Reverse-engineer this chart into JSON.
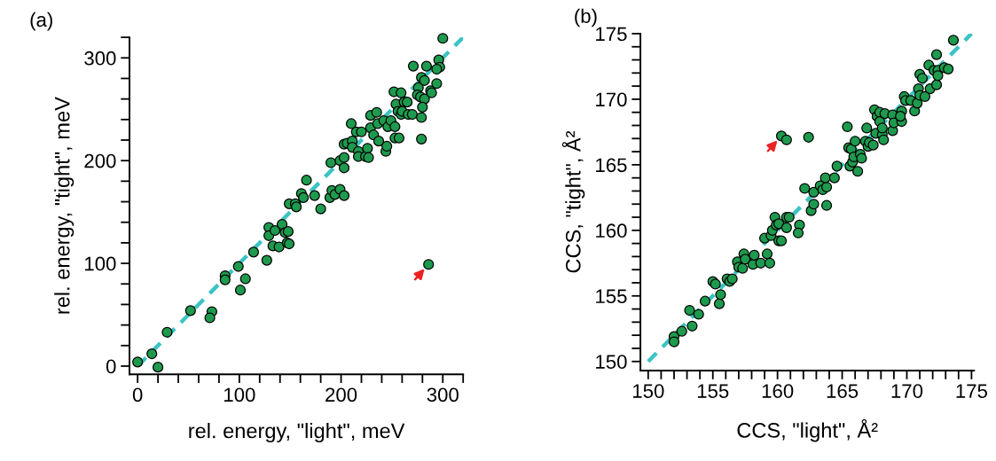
{
  "chart_data": [
    {
      "type": "scatter",
      "title": "(a)",
      "xlabel": "rel. energy, \"light\", meV",
      "ylabel": "rel. energy, \"tight\", meV",
      "grid": false,
      "legend": false,
      "xlim": [
        -8,
        320
      ],
      "ylim": [
        -8,
        320
      ],
      "xticks": [
        0,
        {
          "value": 20,
          "label": null
        },
        {
          "value": 40,
          "label": null
        },
        {
          "value": 60,
          "label": null
        },
        {
          "value": 80,
          "label": null
        },
        100,
        {
          "value": 120,
          "label": null
        },
        {
          "value": 140,
          "label": null
        },
        {
          "value": 160,
          "label": null
        },
        {
          "value": 180,
          "label": null
        },
        200,
        {
          "value": 220,
          "label": null
        },
        {
          "value": 240,
          "label": null
        },
        {
          "value": 260,
          "label": null
        },
        {
          "value": 280,
          "label": null
        },
        300,
        {
          "value": 320,
          "label": null
        }
      ],
      "yticks": [
        0,
        {
          "value": 20,
          "label": null
        },
        {
          "value": 40,
          "label": null
        },
        {
          "value": 60,
          "label": null
        },
        {
          "value": 80,
          "label": null
        },
        100,
        {
          "value": 120,
          "label": null
        },
        {
          "value": 140,
          "label": null
        },
        {
          "value": 160,
          "label": null
        },
        {
          "value": 180,
          "label": null
        },
        200,
        {
          "value": 220,
          "label": null
        },
        {
          "value": 240,
          "label": null
        },
        {
          "value": 260,
          "label": null
        },
        {
          "value": 280,
          "label": null
        },
        300,
        {
          "value": 320,
          "label": null
        }
      ],
      "series": [
        {
          "type": "line",
          "line_style": "dashed",
          "color": "#3cc3c3",
          "x": [
            0,
            320
          ],
          "values": [
            0,
            320
          ]
        },
        {
          "marker": "circle",
          "color": "#1e9a4e",
          "x": [
            0,
            14,
            20,
            29,
            52,
            73,
            71,
            86,
            86,
            99,
            106,
            101,
            114,
            127,
            129,
            129,
            135,
            133,
            139,
            142,
            145,
            148,
            147,
            149,
            149,
            155,
            156,
            161,
            166,
            163,
            174,
            180,
            189,
            191,
            194,
            199,
            203,
            190,
            199,
            203,
            203,
            203,
            206,
            210,
            211,
            211,
            215,
            217,
            217,
            220,
            224,
            226,
            227,
            229,
            229,
            232,
            235,
            236,
            237,
            242,
            244,
            245,
            246,
            249,
            252,
            253,
            253,
            257,
            254,
            256,
            259,
            259,
            262,
            260,
            265,
            266,
            270,
            271,
            276,
            275,
            278,
            279,
            282,
            282,
            280,
            279,
            279,
            284,
            288,
            289,
            294,
            296,
            297,
            294,
            300,
            286
          ],
          "values": [
            4,
            12,
            -1,
            33,
            54,
            53,
            47,
            88,
            84,
            97,
            85,
            74,
            111,
            103,
            135,
            127,
            132,
            117,
            116,
            138,
            130,
            131,
            120,
            119,
            158,
            158,
            155,
            168,
            181,
            164,
            166,
            153,
            164,
            171,
            167,
            172,
            166,
            198,
            200,
            203,
            193,
            216,
            217,
            236,
            219,
            213,
            228,
            209,
            204,
            228,
            204,
            212,
            203,
            232,
            244,
            225,
            247,
            236,
            219,
            239,
            209,
            214,
            233,
            239,
            267,
            233,
            222,
            222,
            255,
            248,
            266,
            245,
            257,
            248,
            257,
            245,
            245,
            292,
            271,
            264,
            262,
            281,
            278,
            260,
            252,
            242,
            221,
            292,
            268,
            266,
            275,
            298,
            291,
            289,
            319,
            99
          ]
        }
      ]
    },
    {
      "type": "scatter",
      "title": "(b)",
      "xlabel": "CCS, \"light\", Å²",
      "ylabel": "CCS, \"tight\", Å²",
      "grid": false,
      "legend": false,
      "xlim": [
        149.4,
        175.2
      ],
      "ylim": [
        149.3,
        175
      ],
      "xticks": [
        150,
        {
          "value": 151,
          "label": null
        },
        {
          "value": 152,
          "label": null
        },
        {
          "value": 153,
          "label": null
        },
        {
          "value": 154,
          "label": null
        },
        155,
        {
          "value": 156,
          "label": null
        },
        {
          "value": 157,
          "label": null
        },
        {
          "value": 158,
          "label": null
        },
        {
          "value": 159,
          "label": null
        },
        160,
        {
          "value": 161,
          "label": null
        },
        {
          "value": 162,
          "label": null
        },
        {
          "value": 163,
          "label": null
        },
        {
          "value": 164,
          "label": null
        },
        165,
        {
          "value": 166,
          "label": null
        },
        {
          "value": 167,
          "label": null
        },
        {
          "value": 168,
          "label": null
        },
        {
          "value": 169,
          "label": null
        },
        170,
        {
          "value": 171,
          "label": null
        },
        {
          "value": 172,
          "label": null
        },
        {
          "value": 173,
          "label": null
        },
        {
          "value": 174,
          "label": null
        },
        175
      ],
      "yticks": [
        150,
        {
          "value": 151,
          "label": null
        },
        {
          "value": 152,
          "label": null
        },
        {
          "value": 153,
          "label": null
        },
        {
          "value": 154,
          "label": null
        },
        155,
        {
          "value": 156,
          "label": null
        },
        {
          "value": 157,
          "label": null
        },
        {
          "value": 158,
          "label": null
        },
        {
          "value": 159,
          "label": null
        },
        160,
        {
          "value": 161,
          "label": null
        },
        {
          "value": 162,
          "label": null
        },
        {
          "value": 163,
          "label": null
        },
        {
          "value": 164,
          "label": null
        },
        165,
        {
          "value": 166,
          "label": null
        },
        {
          "value": 167,
          "label": null
        },
        {
          "value": 168,
          "label": null
        },
        {
          "value": 169,
          "label": null
        },
        170,
        {
          "value": 171,
          "label": null
        },
        {
          "value": 172,
          "label": null
        },
        {
          "value": 173,
          "label": null
        },
        {
          "value": 174,
          "label": null
        },
        175
      ],
      "series": [
        {
          "type": "line",
          "line_style": "dashed",
          "color": "#3cc3c3",
          "x": [
            150,
            175
          ],
          "values": [
            150,
            175
          ]
        },
        {
          "marker": "circle",
          "color": "#1e9a4e",
          "x": [
            152.0,
            152.0,
            152.6,
            153.2,
            153.4,
            153.9,
            154.4,
            155.0,
            155.2,
            155.5,
            155.6,
            156.1,
            156.3,
            156.5,
            156.9,
            157.0,
            157.3,
            157.4,
            157.5,
            158.1,
            158.2,
            158.7,
            159.2,
            159.4,
            159.0,
            159.5,
            159.6,
            159.8,
            159.9,
            160.1,
            160.3,
            160.1,
            160.7,
            160.7,
            160.9,
            160.3,
            160.7,
            161.7,
            161.6,
            162.4,
            162.1,
            162.6,
            162.8,
            162.8,
            163.3,
            163.5,
            163.8,
            163.8,
            163.7,
            164.4,
            164.6,
            165.4,
            165.6,
            165.5,
            165.7,
            165.8,
            165.9,
            166.0,
            166.2,
            166.4,
            166.5,
            166.8,
            166.9,
            167.0,
            167.1,
            167.4,
            167.5,
            167.6,
            167.7,
            167.9,
            167.9,
            168.1,
            168.2,
            168.1,
            168.3,
            168.9,
            168.9,
            169.0,
            169.6,
            169.6,
            169.5,
            169.8,
            169.9,
            170.3,
            170.6,
            170.8,
            170.9,
            171.0,
            171.4,
            171.0,
            171.2,
            171.8,
            172.3,
            171.7,
            172.1,
            172.4,
            172.4,
            172.3,
            172.9,
            173.2,
            173.6
          ],
          "values": [
            151.9,
            151.5,
            152.3,
            153.9,
            152.7,
            153.6,
            154.6,
            156.1,
            155.9,
            154.4,
            155.1,
            156.3,
            156.1,
            156.3,
            157.6,
            157.2,
            157.1,
            158.2,
            157.8,
            157.4,
            158.1,
            157.5,
            158.2,
            157.5,
            159.4,
            159.6,
            160.0,
            161.0,
            160.4,
            159.2,
            159.2,
            160.5,
            160.2,
            161.0,
            161.0,
            167.2,
            166.9,
            160.4,
            159.8,
            167.1,
            163.2,
            161.5,
            162.0,
            162.9,
            163.4,
            163.1,
            161.9,
            163.3,
            164.0,
            164.0,
            164.9,
            167.9,
            164.9,
            166.3,
            166.2,
            165.2,
            165.6,
            166.8,
            164.5,
            165.8,
            165.5,
            166.8,
            167.8,
            166.4,
            166.7,
            166.5,
            169.2,
            167.4,
            168.7,
            169.0,
            168.3,
            167.3,
            166.9,
            167.8,
            168.9,
            168.8,
            167.6,
            168.2,
            169.1,
            168.3,
            168.7,
            170.2,
            169.9,
            169.9,
            169.1,
            169.7,
            170.8,
            170.3,
            170.2,
            171.9,
            171.6,
            170.8,
            171.1,
            172.6,
            172.2,
            172.2,
            171.8,
            173.4,
            172.4,
            172.3,
            174.5
          ]
        }
      ]
    }
  ]
}
